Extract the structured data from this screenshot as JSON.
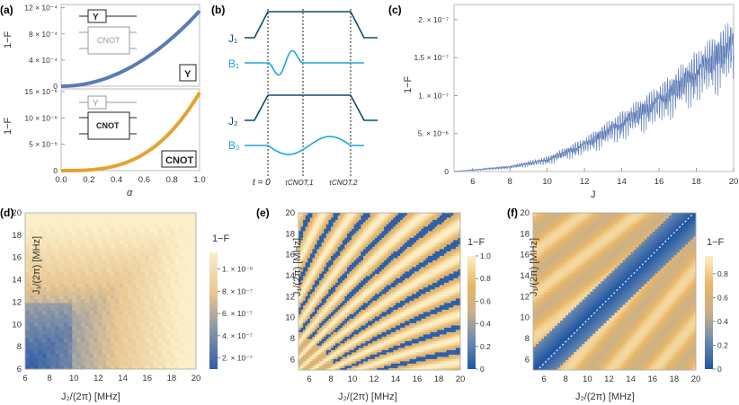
{
  "panel_labels": [
    "(a)",
    "(b)",
    "(c)",
    "(d)",
    "(e)",
    "(f)"
  ],
  "colors": {
    "blue": "#5b7ab6",
    "orange": "#e3a331",
    "dark_blue": "#0f4a6e",
    "light_blue": "#1aa6e0",
    "map_low": "#3b63ad",
    "map_mid": "#f5e7b8",
    "map_high": "#e3a03c"
  },
  "chart_data": [
    {
      "id": "a-top",
      "type": "line",
      "series": [
        {
          "name": "Y",
          "color": "#5b7ab6",
          "coefficient": 0.00115,
          "power": 2
        }
      ],
      "xlim": [
        0,
        1
      ],
      "ylim": [
        0,
        0.00125
      ],
      "ylabel": "1−F",
      "ytick_labels": [
        "0",
        "4 × 10⁻⁴",
        "8 × 10⁻⁴",
        "12 × 10⁻⁴"
      ],
      "ytick_values": [
        0,
        0.0004,
        0.0008,
        0.0012
      ],
      "badge": "Y",
      "inset": {
        "top_box": "Y",
        "bottom_box": "CNOT"
      }
    },
    {
      "id": "a-bottom",
      "type": "line",
      "series": [
        {
          "name": "CNOT",
          "color": "#e3a331",
          "coefficient": 1.48e-05,
          "power": 3
        }
      ],
      "xlim": [
        0,
        1
      ],
      "ylim": [
        0,
        1.55e-05
      ],
      "xlabel": "α",
      "ylabel": "1−F",
      "xtick_labels": [
        "0.0",
        "0.2",
        "0.4",
        "0.6",
        "0.8",
        "1.0"
      ],
      "ytick_labels": [
        "0",
        "5 × 10⁻⁶",
        "10 × 10⁻⁶",
        "15 × 10⁻⁶"
      ],
      "ytick_values": [
        0,
        5e-06,
        1e-05,
        1.5e-05
      ],
      "badge": "CNOT",
      "inset": {
        "top_box": "Y",
        "bottom_box": "CNOT"
      }
    },
    {
      "id": "b",
      "type": "diagram",
      "channels": [
        "J₁",
        "B₁",
        "J₂",
        "B₂"
      ],
      "time_labels": [
        "t = 0",
        "τCNOT,1",
        "τCNOT,2"
      ]
    },
    {
      "id": "c",
      "type": "area",
      "title": "",
      "xlabel": "J",
      "ylabel": "1−F",
      "xlim": [
        5,
        20
      ],
      "ylim": [
        0,
        2.2e-07
      ],
      "xtick_labels": [
        "6",
        "8",
        "10",
        "12",
        "14",
        "16",
        "18",
        "20"
      ],
      "ytick_labels": [
        "0",
        "5. × 10⁻⁸",
        "1. × 10⁻⁷",
        "1.5 × 10⁻⁷",
        "2. × 10⁻⁷"
      ],
      "ytick_values": [
        0,
        5e-08,
        1e-07,
        1.5e-07,
        2e-07
      ],
      "envelope_upper": [
        [
          5,
          0
        ],
        [
          8,
          8e-09
        ],
        [
          10,
          2e-08
        ],
        [
          12,
          4.5e-08
        ],
        [
          14,
          8e-08
        ],
        [
          16,
          1.15e-07
        ],
        [
          18,
          1.6e-07
        ],
        [
          20,
          2.05e-07
        ]
      ],
      "envelope_lower": [
        [
          5,
          0
        ],
        [
          8,
          3e-09
        ],
        [
          10,
          8e-09
        ],
        [
          12,
          2e-08
        ],
        [
          14,
          3.8e-08
        ],
        [
          16,
          5.8e-08
        ],
        [
          18,
          8.5e-08
        ],
        [
          20,
          1.1e-07
        ]
      ]
    },
    {
      "id": "d",
      "type": "heatmap",
      "xlabel": "J₂/(2π) [MHz]",
      "ylabel": "J₁/(2π) [MHz]",
      "xlim": [
        6,
        20
      ],
      "ylim": [
        6,
        20
      ],
      "xtick_labels": [
        "6",
        "8",
        "10",
        "12",
        "14",
        "16",
        "18",
        "20"
      ],
      "ytick_labels": [
        "6",
        "8",
        "10",
        "12",
        "14",
        "16",
        "18",
        "20"
      ],
      "colorbar_title": "1−F",
      "colorbar_labels": [
        "2. × 10⁻⁷",
        "4. × 10⁻⁷",
        "6. × 10⁻⁷",
        "8. × 10⁻⁷",
        "1. × 10⁻⁶"
      ],
      "colorbar_values": [
        2e-07,
        4e-07,
        6e-07,
        8e-07,
        1e-06
      ],
      "colorbar_range": [
        1e-07,
        1.15e-06
      ]
    },
    {
      "id": "e",
      "type": "heatmap",
      "xlabel": "J₂/(2π) [MHz]",
      "ylabel": "J₁/(2π) [MHz]",
      "xlim": [
        5,
        20
      ],
      "ylim": [
        5,
        20
      ],
      "xtick_labels": [
        "6",
        "8",
        "10",
        "12",
        "14",
        "16",
        "18",
        "20"
      ],
      "ytick_labels": [
        "6",
        "8",
        "10",
        "12",
        "14",
        "16",
        "18",
        "20"
      ],
      "colorbar_title": "1−F",
      "colorbar_labels": [
        "0",
        "0.2",
        "0.4",
        "0.6",
        "0.8",
        "1.0"
      ],
      "colorbar_values": [
        0,
        0.2,
        0.4,
        0.6,
        0.8,
        1.0
      ],
      "colorbar_range": [
        0,
        1
      ]
    },
    {
      "id": "f",
      "type": "heatmap",
      "xlabel": "J₂/(2π) [MHz]",
      "ylabel": "J₁/(2π) [MHz]",
      "xlim": [
        5,
        20
      ],
      "ylim": [
        5,
        20
      ],
      "xtick_labels": [
        "6",
        "8",
        "10",
        "12",
        "14",
        "16",
        "18",
        "20"
      ],
      "ytick_labels": [
        "6",
        "8",
        "10",
        "12",
        "14",
        "16",
        "18",
        "20"
      ],
      "colorbar_title": "1−F",
      "colorbar_labels": [
        "0",
        "0.2",
        "0.4",
        "0.6",
        "0.8"
      ],
      "colorbar_values": [
        0,
        0.2,
        0.4,
        0.6,
        0.8
      ],
      "colorbar_range": [
        0,
        0.95
      ],
      "diagonal": "dashed white line J₁ = J₂"
    }
  ]
}
